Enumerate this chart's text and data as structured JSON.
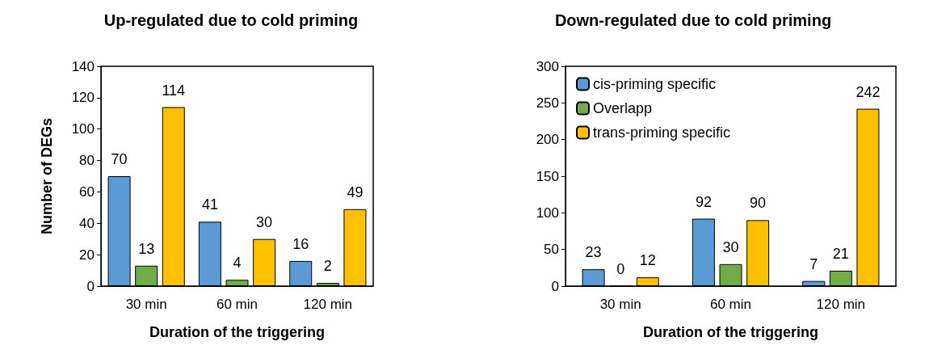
{
  "chart_data": [
    {
      "type": "bar",
      "title": "Up-regulated due to cold priming",
      "xlabel": "Duration of the triggering",
      "ylabel": "Number of DEGs",
      "categories": [
        "30 min",
        "60 min",
        "120 min"
      ],
      "series": [
        {
          "color": "#5b9bd5",
          "values": [
            70,
            41,
            16
          ]
        },
        {
          "color": "#70ad47",
          "values": [
            13,
            4,
            2
          ]
        },
        {
          "color": "#ffc000",
          "values": [
            114,
            30,
            49
          ]
        }
      ],
      "ylim": [
        0,
        140
      ],
      "yticks": [
        0,
        20,
        40,
        60,
        80,
        100,
        120,
        140
      ],
      "grid": false,
      "legend": false,
      "data_labels": true
    },
    {
      "type": "bar",
      "title": "Down-regulated due to cold priming",
      "xlabel": "Duration of the triggering",
      "categories": [
        "30 min",
        "60 min",
        "120 min"
      ],
      "series": [
        {
          "name": "cis-priming specific",
          "color": "#5b9bd5",
          "values": [
            23,
            92,
            7
          ]
        },
        {
          "name": "Overlapp",
          "color": "#70ad47",
          "values": [
            0,
            30,
            21
          ]
        },
        {
          "name": "trans-priming specific",
          "color": "#ffc000",
          "values": [
            12,
            90,
            242
          ]
        }
      ],
      "ylim": [
        0,
        300
      ],
      "yticks": [
        0,
        50,
        100,
        150,
        200,
        250,
        300
      ],
      "grid": false,
      "legend": "top left",
      "data_labels": true
    }
  ]
}
